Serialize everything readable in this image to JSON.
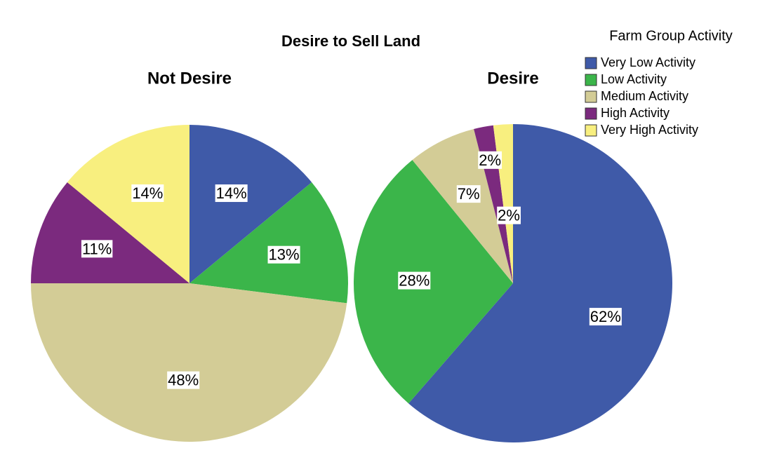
{
  "title": "Desire to Sell Land",
  "legend": {
    "title": "Farm Group Activity"
  },
  "chart_data": [
    {
      "type": "pie",
      "title": "Not Desire",
      "categories": [
        "Very Low Activity",
        "Low Activity",
        "Medium Activity",
        "High Activity",
        "Very High Activity"
      ],
      "values": [
        14,
        13,
        48,
        11,
        14
      ],
      "value_labels": [
        "14%",
        "13%",
        "48%",
        "11%",
        "14%"
      ],
      "colors": [
        "#3f5aa8",
        "#3bb54a",
        "#d3cc96",
        "#7b2a7e",
        "#f8ef7f"
      ]
    },
    {
      "type": "pie",
      "title": "Desire",
      "categories": [
        "Very Low Activity",
        "Low Activity",
        "Medium Activity",
        "High Activity",
        "Very High Activity"
      ],
      "values": [
        62,
        28,
        7,
        2,
        2
      ],
      "value_labels": [
        "62%",
        "28%",
        "7%",
        "2%",
        "2%"
      ],
      "colors": [
        "#3f5aa8",
        "#3bb54a",
        "#d3cc96",
        "#7b2a7e",
        "#f8ef7f"
      ]
    }
  ]
}
